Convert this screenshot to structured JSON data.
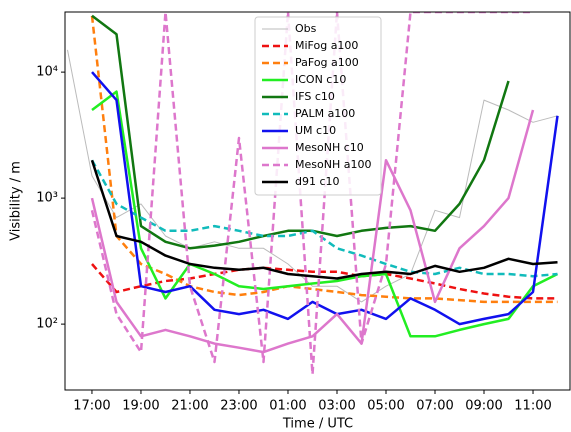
{
  "chart_data": {
    "type": "line",
    "x_label": "Time / UTC",
    "y_label": "Visibility / m",
    "x": [
      16,
      17,
      18,
      19,
      20,
      21,
      22,
      23,
      24,
      25,
      26,
      27,
      28,
      29,
      30,
      31,
      32,
      33,
      34,
      35,
      36
    ],
    "xlim": [
      15.9,
      36.55
    ],
    "xticks": [
      {
        "value": 17,
        "label": "17:00"
      },
      {
        "value": 19,
        "label": "19:00"
      },
      {
        "value": 21,
        "label": "21:00"
      },
      {
        "value": 23,
        "label": "23:00"
      },
      {
        "value": 25,
        "label": "01:00"
      },
      {
        "value": 27,
        "label": "03:00"
      },
      {
        "value": 29,
        "label": "05:00"
      },
      {
        "value": 31,
        "label": "07:00"
      },
      {
        "value": 33,
        "label": "09:00"
      },
      {
        "value": 35,
        "label": "11:00"
      }
    ],
    "ylim": [
      30,
      30000
    ],
    "log_y": true,
    "yticks": [
      {
        "value": 100,
        "label": "10²"
      },
      {
        "value": 1000,
        "label": "10³"
      },
      {
        "value": 10000,
        "label": "10⁴"
      }
    ],
    "legend": "upper center",
    "series": [
      {
        "name": "Obs",
        "color": "#bbbbbb",
        "style": "solid",
        "width": 1,
        "values": [
          15000,
          1500,
          700,
          900,
          500,
          400,
          450,
          400,
          400,
          300,
          200,
          200,
          150,
          200,
          250,
          800,
          700,
          6000,
          5000,
          4000,
          4500
        ]
      },
      {
        "name": "MiFog a100",
        "color": "#ee1111",
        "style": "dashed",
        "width": 2.5,
        "values": [
          null,
          300,
          180,
          200,
          220,
          230,
          250,
          270,
          280,
          270,
          260,
          260,
          240,
          250,
          230,
          210,
          190,
          175,
          165,
          160,
          160
        ]
      },
      {
        "name": "PaFog a100",
        "color": "#ff7f0e",
        "style": "dashed",
        "width": 2.5,
        "values": [
          null,
          28000,
          500,
          300,
          250,
          200,
          180,
          170,
          180,
          200,
          190,
          180,
          170,
          165,
          160,
          160,
          155,
          150,
          150,
          150,
          150
        ]
      },
      {
        "name": "ICON c10",
        "color": "#22ee22",
        "style": "solid",
        "width": 2.5,
        "values": [
          null,
          5000,
          7000,
          400,
          160,
          300,
          250,
          200,
          190,
          200,
          210,
          220,
          240,
          250,
          80,
          80,
          90,
          100,
          110,
          200,
          250
        ]
      },
      {
        "name": "IFS c10",
        "color": "#117711",
        "style": "solid",
        "width": 2.5,
        "values": [
          null,
          28000,
          20000,
          600,
          450,
          400,
          420,
          450,
          500,
          550,
          550,
          500,
          550,
          580,
          600,
          550,
          900,
          2000,
          8500,
          null,
          null
        ]
      },
      {
        "name": "PALM a100",
        "color": "#11bbbb",
        "style": "dashed",
        "width": 2.5,
        "values": [
          null,
          2000,
          900,
          700,
          550,
          550,
          600,
          550,
          500,
          500,
          550,
          400,
          350,
          300,
          260,
          250,
          280,
          250,
          250,
          240,
          250
        ]
      },
      {
        "name": "UM c10",
        "color": "#1111ee",
        "style": "solid",
        "width": 2.5,
        "values": [
          null,
          10000,
          6000,
          200,
          180,
          200,
          130,
          120,
          130,
          110,
          150,
          120,
          130,
          110,
          160,
          130,
          100,
          110,
          120,
          180,
          4500
        ]
      },
      {
        "name": "MesoNH c10",
        "color": "#dd77cc",
        "style": "solid",
        "width": 2.5,
        "values": [
          null,
          1000,
          150,
          80,
          90,
          80,
          70,
          65,
          60,
          70,
          80,
          120,
          70,
          2000,
          800,
          150,
          400,
          600,
          1000,
          5000,
          null
        ]
      },
      {
        "name": "MesoNH a100",
        "color": "#dd77cc",
        "style": "dashed",
        "width": 2.5,
        "values": [
          null,
          800,
          120,
          60,
          30000,
          200,
          50,
          3000,
          50,
          30000,
          40,
          30000,
          70,
          300,
          30000,
          30000,
          30000,
          30000,
          30000,
          30000,
          null
        ]
      },
      {
        "name": "d91 c10",
        "color": "#000000",
        "style": "solid",
        "width": 2.5,
        "values": [
          null,
          2000,
          500,
          450,
          350,
          300,
          280,
          270,
          280,
          250,
          240,
          230,
          250,
          260,
          250,
          290,
          260,
          280,
          330,
          300,
          310
        ]
      }
    ]
  }
}
